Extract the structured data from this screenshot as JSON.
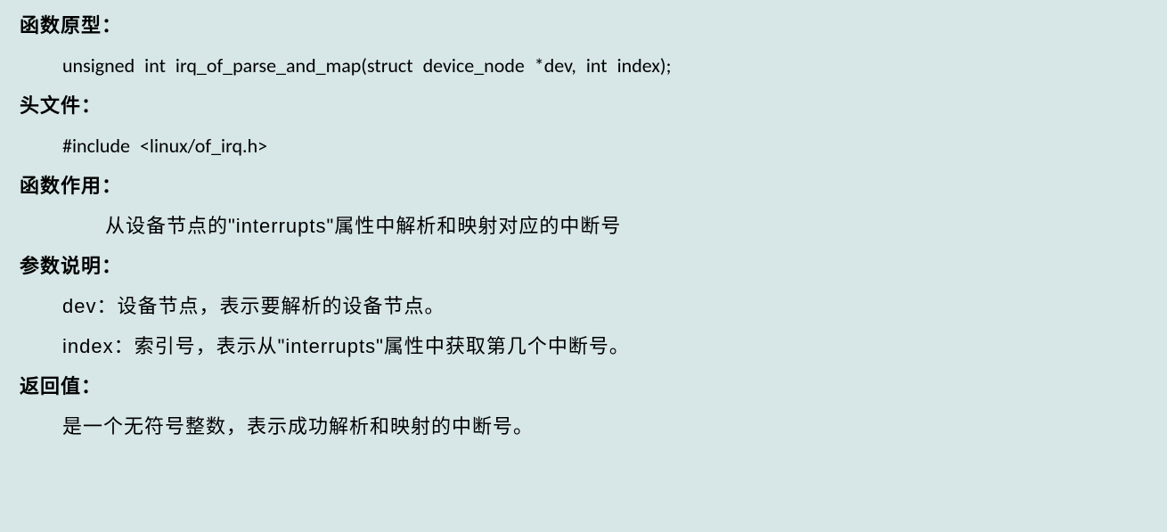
{
  "doc": {
    "background_color": "#d7e6e7",
    "text_color": "#000000",
    "font_size_pt": 16,
    "lines": {
      "prototype_label": "函数原型：",
      "prototype_code": "unsigned int irq_of_parse_and_map(struct device_node *dev, int index);",
      "header_label": "头文件：",
      "header_code": "#include <linux/of_irq.h>",
      "purpose_label": "函数作用：",
      "purpose_text": "从设备节点的\"interrupts\"属性中解析和映射对应的中断号",
      "params_label": "参数说明：",
      "param_dev": "dev：设备节点，表示要解析的设备节点。",
      "param_index": "index：索引号，表示从\"interrupts\"属性中获取第几个中断号。",
      "return_label": "返回值：",
      "return_text": "是一个无符号整数，表示成功解析和映射的中断号。"
    }
  }
}
